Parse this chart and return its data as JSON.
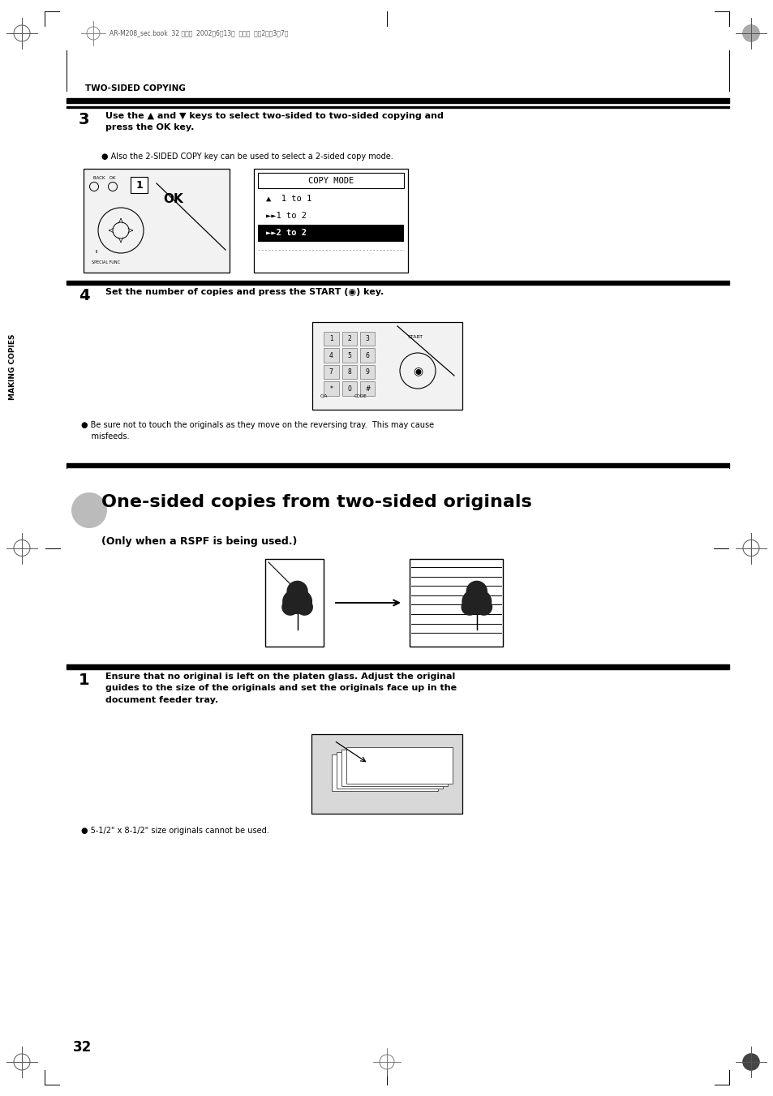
{
  "page_bg": "#ffffff",
  "page_width": 9.54,
  "page_height": 13.51,
  "dpi": 100,
  "header_text": "AR-M208_sec.book  32 ページ  2002年6月13日  木曜日  午後2時〷3て7分",
  "section_label": "TWO-SIDED COPYING",
  "step3_num": "3",
  "step3_text": "Use the ▲ and ▼ keys to select two-sided to two-sided copying and\npress the OK key.",
  "step3_bullet": "● Also the 2-SIDED COPY key can be used to select a 2-sided copy mode.",
  "step4_num": "4",
  "step4_text": "Set the number of copies and press the START (◉) key.",
  "step4_bullet": "● Be sure not to touch the originals as they move on the reversing tray.  This may cause\n    misfeeds.",
  "section2_title": "One-sided copies from two-sided originals",
  "section2_subtitle": "(Only when a RSPF is being used.)",
  "step1_num": "1",
  "step1_text": "Ensure that no original is left on the platen glass. Adjust the original\nguides to the size of the originals and set the originals face up in the\ndocument feeder tray.",
  "step1_bullet": "● 5-1/2\" x 8-1/2\" size originals cannot be used.",
  "page_number": "32",
  "side_label": "MAKING COPIES",
  "copy_mode_title": "COPY MODE",
  "copy_mode_items": [
    "▲  1 to 1",
    "►►1 to 2",
    "►►2 to 2"
  ],
  "selected_item_index": 2,
  "hr_color": "#000000",
  "text_color": "#000000",
  "highlight_color": "#000000",
  "highlight_text_color": "#ffffff"
}
